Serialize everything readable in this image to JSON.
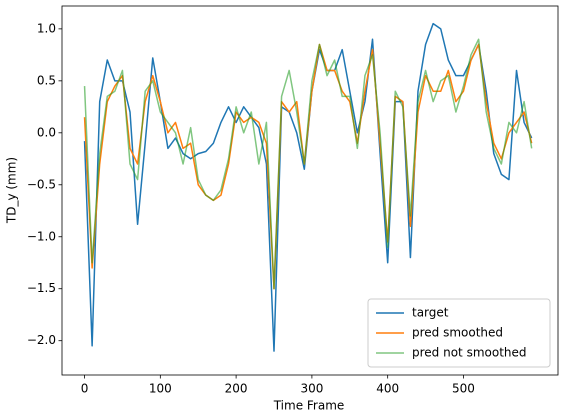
{
  "chart_data": {
    "type": "line",
    "xlabel": "Time Frame",
    "ylabel": "TD_y (mm)",
    "x": [
      0,
      10,
      20,
      30,
      40,
      50,
      60,
      70,
      80,
      90,
      100,
      110,
      120,
      130,
      140,
      150,
      160,
      170,
      180,
      190,
      200,
      210,
      220,
      230,
      240,
      250,
      260,
      270,
      280,
      290,
      300,
      310,
      320,
      330,
      340,
      350,
      360,
      370,
      380,
      390,
      400,
      410,
      420,
      430,
      440,
      450,
      460,
      470,
      480,
      490,
      500,
      510,
      520,
      530,
      540,
      550,
      560,
      570,
      580,
      590
    ],
    "series": [
      {
        "name": "target",
        "color": "#1f77b4",
        "alpha": 1,
        "values": [
          -0.08,
          -2.05,
          0.3,
          0.7,
          0.5,
          0.5,
          0.2,
          -0.88,
          -0.1,
          0.72,
          0.3,
          -0.15,
          -0.05,
          -0.2,
          -0.25,
          -0.2,
          -0.18,
          -0.1,
          0.1,
          0.25,
          0.1,
          0.25,
          0.15,
          0.05,
          -0.3,
          -2.1,
          0.25,
          0.2,
          0.0,
          -0.35,
          0.4,
          0.8,
          0.6,
          0.6,
          0.8,
          0.4,
          0.0,
          0.3,
          0.9,
          -0.2,
          -1.25,
          0.3,
          0.3,
          -1.2,
          0.4,
          0.85,
          1.05,
          1.0,
          0.7,
          0.55,
          0.55,
          0.7,
          0.85,
          0.4,
          -0.2,
          -0.4,
          -0.45,
          0.6,
          0.1,
          -0.05
        ]
      },
      {
        "name": "pred smoothed",
        "color": "#ff7f0e",
        "alpha": 1,
        "values": [
          0.15,
          -1.3,
          -0.3,
          0.3,
          0.45,
          0.55,
          -0.15,
          -0.3,
          0.3,
          0.55,
          0.3,
          0.0,
          0.1,
          -0.15,
          -0.1,
          -0.5,
          -0.6,
          -0.65,
          -0.6,
          -0.3,
          0.2,
          0.1,
          0.15,
          0.1,
          -0.1,
          -1.5,
          0.3,
          0.2,
          0.3,
          -0.3,
          0.4,
          0.85,
          0.6,
          0.6,
          0.4,
          0.3,
          -0.1,
          0.4,
          0.8,
          -0.1,
          -1.05,
          0.35,
          0.3,
          -0.9,
          0.2,
          0.55,
          0.4,
          0.4,
          0.6,
          0.3,
          0.4,
          0.7,
          0.85,
          0.3,
          -0.1,
          -0.25,
          0.0,
          0.1,
          0.2,
          -0.1
        ]
      },
      {
        "name": "pred not smoothed",
        "color": "#2ca02c",
        "alpha": 0.6,
        "values": [
          0.45,
          -1.25,
          -0.2,
          0.35,
          0.4,
          0.6,
          -0.3,
          -0.45,
          0.4,
          0.5,
          0.2,
          0.1,
          0.0,
          -0.3,
          0.05,
          -0.45,
          -0.6,
          -0.65,
          -0.55,
          -0.25,
          0.25,
          0.0,
          0.2,
          -0.3,
          0.1,
          -1.5,
          0.35,
          0.6,
          0.2,
          -0.3,
          0.5,
          0.85,
          0.55,
          0.7,
          0.35,
          0.35,
          -0.15,
          0.55,
          0.75,
          0.0,
          -1.1,
          0.4,
          0.25,
          -0.8,
          0.3,
          0.6,
          0.3,
          0.5,
          0.55,
          0.2,
          0.45,
          0.75,
          0.9,
          0.2,
          -0.15,
          -0.3,
          0.1,
          0.0,
          0.3,
          -0.15
        ]
      }
    ],
    "xlim": [
      -29.75,
      624.75
    ],
    "xticks": [
      0,
      100,
      200,
      300,
      400,
      500
    ],
    "ylim": [
      -2.33,
      1.22
    ],
    "yticks": [
      {
        "value": -2,
        "label": "−2.0"
      },
      {
        "value": -1.5,
        "label": "−1.5"
      },
      {
        "value": -1,
        "label": "−1.0"
      },
      {
        "value": -0.5,
        "label": "−0.5"
      },
      {
        "value": 0,
        "label": "0.0"
      },
      {
        "value": 0.5,
        "label": "0.5"
      },
      {
        "value": 1,
        "label": "1.0"
      }
    ],
    "legend": "lower right"
  }
}
